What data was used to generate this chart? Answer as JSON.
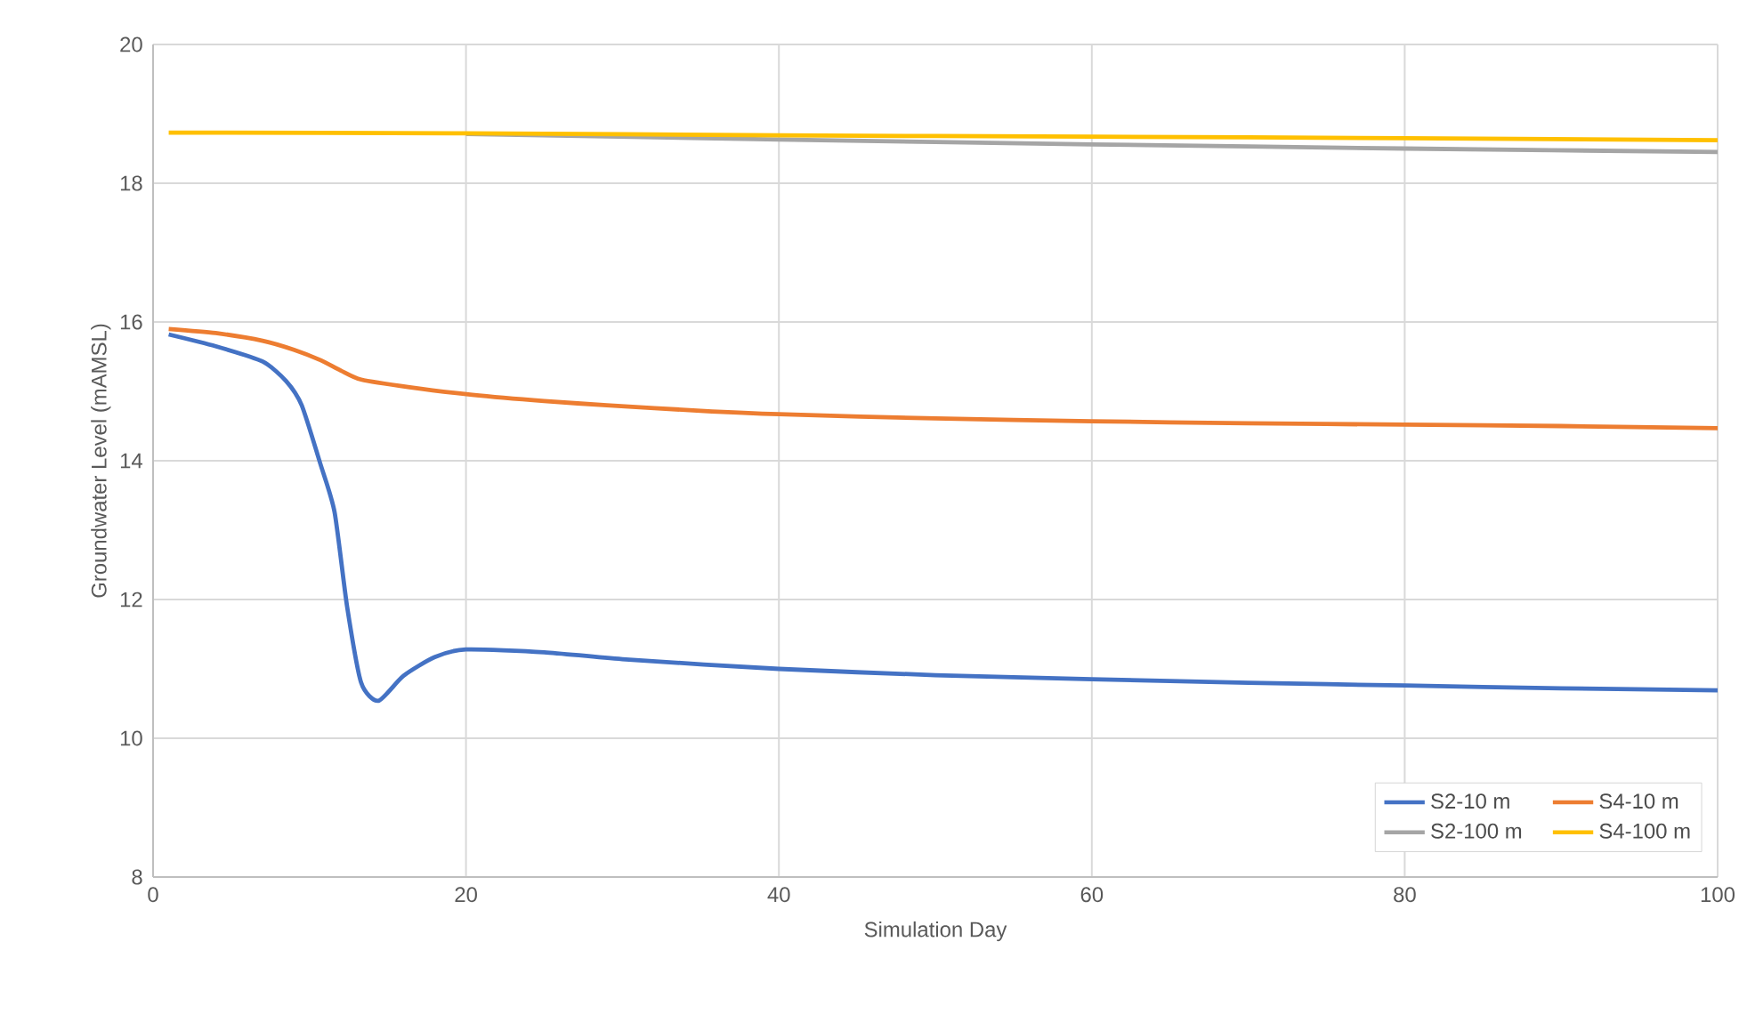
{
  "chart_data": {
    "type": "line",
    "xlabel": "Simulation Day",
    "ylabel": "Groundwater  Level  (mAMSL)",
    "xlim": [
      0,
      100
    ],
    "ylim": [
      8,
      20
    ],
    "xticks": [
      0,
      20,
      40,
      60,
      80,
      100
    ],
    "yticks": [
      8,
      10,
      12,
      14,
      16,
      18,
      20
    ],
    "grid": true,
    "legend": "bottom right",
    "marker": "none",
    "line_style": "solid",
    "series": [
      {
        "name": "S2-10 m",
        "color": "#4472c4",
        "x": [
          1,
          4,
          7,
          8.5,
          9.5,
          10.7,
          11.6,
          12.4,
          13.3,
          14.4,
          16,
          18,
          20,
          25,
          30,
          40,
          50,
          60,
          70,
          80,
          90,
          100
        ],
        "values": [
          15.82,
          15.65,
          15.43,
          15.15,
          14.8,
          13.95,
          13.26,
          11.9,
          10.8,
          10.54,
          10.9,
          11.17,
          11.28,
          11.24,
          11.14,
          11.0,
          10.91,
          10.85,
          10.8,
          10.76,
          10.72,
          10.69
        ]
      },
      {
        "name": "S4-10 m",
        "color": "#ed7d31",
        "x": [
          1,
          4,
          7,
          9,
          10.7,
          12,
          13.3,
          16.4,
          20.4,
          25,
          29,
          35,
          40,
          50,
          60,
          70,
          80,
          90,
          100
        ],
        "values": [
          15.9,
          15.84,
          15.73,
          15.6,
          15.45,
          15.3,
          15.17,
          15.06,
          14.95,
          14.86,
          14.8,
          14.72,
          14.67,
          14.61,
          14.57,
          14.54,
          14.52,
          14.5,
          14.47
        ]
      },
      {
        "name": "S2-100 m",
        "color": "#a5a5a5",
        "x": [
          20,
          40,
          60,
          80,
          100
        ],
        "values": [
          18.71,
          18.63,
          18.56,
          18.5,
          18.45
        ]
      },
      {
        "name": "S4-100 m",
        "color": "#ffc000",
        "x": [
          1,
          20,
          40,
          60,
          80,
          100
        ],
        "values": [
          18.73,
          18.72,
          18.69,
          18.67,
          18.65,
          18.62
        ]
      }
    ]
  }
}
